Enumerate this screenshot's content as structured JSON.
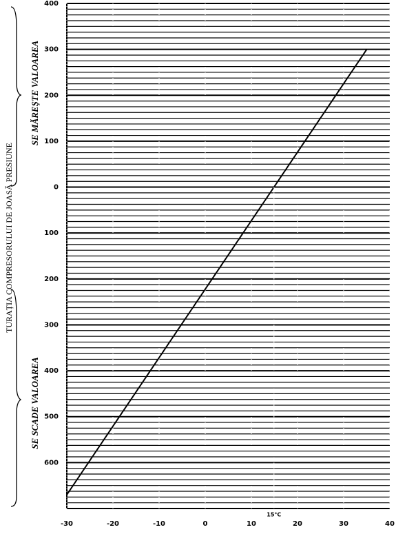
{
  "chart_data": {
    "type": "line",
    "y_label": "TURAȚIA COMPRESORULUI DE JOASĂ PRESIUNE",
    "annotations": [
      "SE MĂREŞTE VALOAREA",
      "SE SCADE VALOAREA",
      "15°C"
    ],
    "x": [
      -30,
      35
    ],
    "values": [
      -670,
      300
    ],
    "color": "#000000",
    "xlim": [
      -30,
      40
    ],
    "ylim": [
      -700,
      400
    ],
    "xticks": [
      -30,
      -20,
      -10,
      0,
      10,
      20,
      30,
      40
    ],
    "yticks": [
      400,
      300,
      200,
      100,
      0,
      {
        "value": -100,
        "label": "100"
      },
      {
        "value": -200,
        "label": "200"
      },
      {
        "value": -300,
        "label": "300"
      },
      {
        "value": -400,
        "label": "400"
      },
      {
        "value": -500,
        "label": "500"
      },
      {
        "value": -600,
        "label": "600"
      }
    ],
    "grid": true
  }
}
